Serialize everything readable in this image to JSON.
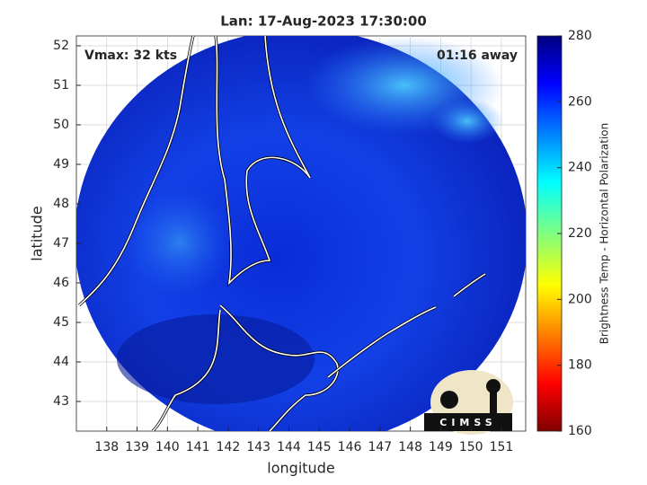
{
  "map": {
    "title": "Lan: 17-Aug-2023 17:30:00",
    "annotations": {
      "left": "Vmax: 32 kts",
      "right": "01:16 away"
    },
    "xlabel": "longitude",
    "ylabel": "latitude",
    "xlim": [
      137,
      151.8
    ],
    "ylim": [
      42.25,
      52.25
    ],
    "xticks": [
      138,
      139,
      140,
      141,
      142,
      143,
      144,
      145,
      146,
      147,
      148,
      149,
      150,
      151
    ],
    "yticks": [
      43,
      44,
      45,
      46,
      47,
      48,
      49,
      50,
      51,
      52
    ],
    "grid": true,
    "colorbar": {
      "label": "Brightness Temp - Horizontal Polarization",
      "lim": [
        160,
        280
      ],
      "ticks": [
        160,
        180,
        200,
        220,
        240,
        260,
        280
      ]
    },
    "logo": "CIMSS"
  }
}
